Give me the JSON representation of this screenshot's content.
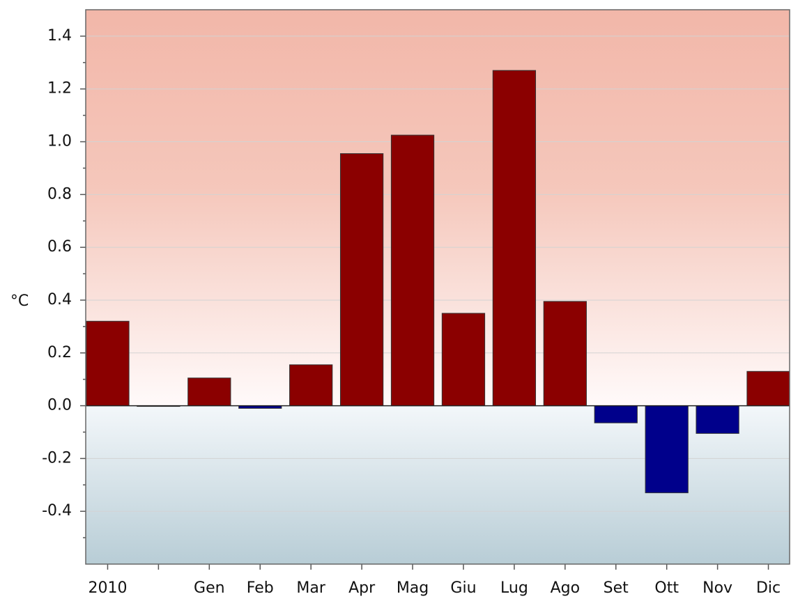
{
  "chart_data": {
    "type": "bar",
    "ylabel": "°C",
    "categories": [
      "2010",
      null,
      "Gen",
      "Feb",
      "Mar",
      "Apr",
      "Mag",
      "Giu",
      "Lug",
      "Ago",
      "Set",
      "Ott",
      "Nov",
      "Dic"
    ],
    "values": [
      0.32,
      0.0,
      0.105,
      -0.01,
      0.155,
      0.955,
      1.025,
      0.35,
      1.27,
      0.395,
      -0.065,
      -0.33,
      -0.105,
      0.13
    ],
    "color_positive": "#8b0000",
    "color_negative": "#00008b",
    "ylim": [
      -0.6,
      1.5
    ],
    "yticks": [
      -0.4,
      -0.2,
      {
        "value": 0,
        "label": "0.0"
      },
      0.2,
      0.4,
      0.6,
      0.8,
      {
        "value": 1,
        "label": "1.0"
      },
      1.2,
      1.4
    ],
    "minor_yticks": [
      -0.5,
      -0.3,
      -0.1,
      0.1,
      0.3,
      0.5,
      0.7,
      0.9,
      1.1,
      1.3
    ],
    "grid": true
  }
}
